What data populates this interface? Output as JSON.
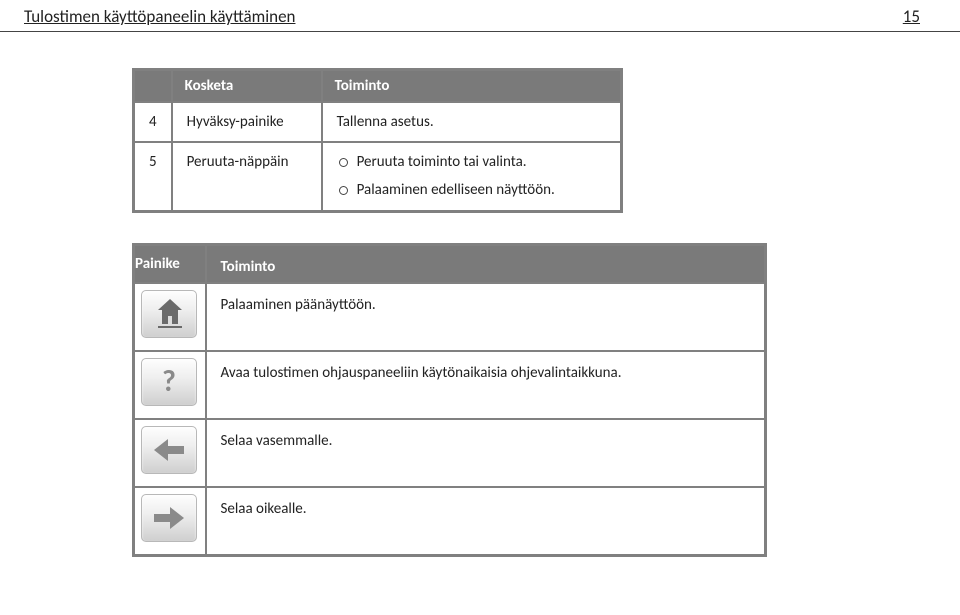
{
  "header": {
    "title": "Tulostimen käyttöpaneelin käyttäminen",
    "page": "15"
  },
  "table1": {
    "headers": {
      "kosketa": "Kosketa",
      "toiminto": "Toiminto"
    },
    "rows": [
      {
        "num": "4",
        "key": "Hyväksy-painike",
        "desc": "Tallenna asetus."
      },
      {
        "num": "5",
        "key": "Peruuta-näppäin",
        "bullets": [
          "Peruuta toiminto tai valinta.",
          "Palaaminen edelliseen näyttöön."
        ]
      }
    ]
  },
  "table2": {
    "headers": {
      "painike": "Painike",
      "toiminto": "Toiminto"
    },
    "rows": [
      {
        "icon": "home",
        "desc": "Palaaminen päänäyttöön."
      },
      {
        "icon": "help",
        "desc": "Avaa tulostimen ohjauspaneeliin käytönaikaisia ohjevalintaikkuna."
      },
      {
        "icon": "left",
        "desc": "Selaa vasemmalle."
      },
      {
        "icon": "right",
        "desc": "Selaa oikealle."
      }
    ]
  }
}
